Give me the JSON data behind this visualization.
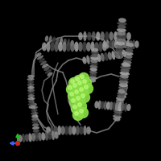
{
  "background_color": "#000000",
  "protein_color_light": "#b0b0b0",
  "protein_color_mid": "#909090",
  "protein_color_dark": "#606060",
  "ligand_color": "#88dd44",
  "ligand_highlight": "#ccff88",
  "axis_colors": {
    "x": "#3366ff",
    "y": "#22bb22",
    "origin": "#cc2222"
  },
  "figure_size": [
    2.0,
    2.0
  ],
  "dpi": 100
}
